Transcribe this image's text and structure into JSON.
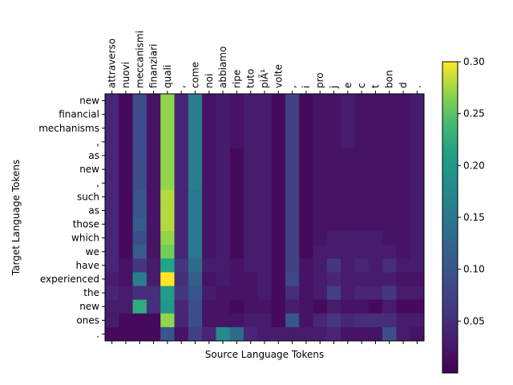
{
  "chart_data": {
    "type": "heatmap",
    "title": "",
    "xlabel": "Source Language Tokens",
    "ylabel": "Target Language Tokens",
    "x_tick_position": "top",
    "x_labels": [
      "attraverso",
      "nuovi",
      "meccanismi",
      "finanziari",
      "quali",
      ",",
      "come",
      "noi",
      "abbiamo",
      "ripe",
      "tuto",
      "piÃ¹",
      "volte",
      ",",
      "i",
      "pro",
      "j",
      "e",
      "c",
      "t",
      "bon",
      "d",
      "."
    ],
    "y_labels": [
      "new",
      "financial",
      "mechanisms",
      ",",
      "as",
      "new",
      ",",
      "such",
      "as",
      "those",
      "which",
      "we",
      "have",
      "experienced",
      "the",
      "new",
      "ones",
      "."
    ],
    "colormap": "viridis",
    "colorbar": {
      "min": 0.0,
      "max": 0.3,
      "ticks": [
        "0.05",
        "0.10",
        "0.15",
        "0.20",
        "0.25",
        "0.30"
      ]
    },
    "values": [
      [
        0.04,
        0.01,
        0.09,
        0.02,
        0.27,
        0.04,
        0.16,
        0.02,
        0.03,
        0.02,
        0.03,
        0.03,
        0.01,
        0.07,
        0.01,
        0.02,
        0.02,
        0.03,
        0.02,
        0.02,
        0.02,
        0.02,
        0.03
      ],
      [
        0.04,
        0.01,
        0.09,
        0.02,
        0.27,
        0.04,
        0.16,
        0.02,
        0.03,
        0.02,
        0.03,
        0.03,
        0.01,
        0.07,
        0.01,
        0.02,
        0.02,
        0.03,
        0.02,
        0.02,
        0.02,
        0.02,
        0.03
      ],
      [
        0.04,
        0.01,
        0.09,
        0.02,
        0.27,
        0.04,
        0.16,
        0.02,
        0.03,
        0.02,
        0.03,
        0.03,
        0.01,
        0.07,
        0.01,
        0.02,
        0.02,
        0.03,
        0.02,
        0.02,
        0.02,
        0.02,
        0.03
      ],
      [
        0.04,
        0.01,
        0.09,
        0.02,
        0.27,
        0.04,
        0.16,
        0.02,
        0.03,
        0.02,
        0.03,
        0.03,
        0.01,
        0.07,
        0.01,
        0.02,
        0.02,
        0.03,
        0.02,
        0.02,
        0.02,
        0.02,
        0.03
      ],
      [
        0.04,
        0.01,
        0.09,
        0.02,
        0.27,
        0.04,
        0.16,
        0.02,
        0.03,
        0.01,
        0.03,
        0.03,
        0.01,
        0.07,
        0.01,
        0.02,
        0.02,
        0.02,
        0.02,
        0.02,
        0.02,
        0.02,
        0.03
      ],
      [
        0.04,
        0.01,
        0.09,
        0.02,
        0.27,
        0.04,
        0.16,
        0.02,
        0.03,
        0.01,
        0.03,
        0.03,
        0.01,
        0.07,
        0.01,
        0.02,
        0.02,
        0.02,
        0.02,
        0.02,
        0.02,
        0.02,
        0.03
      ],
      [
        0.04,
        0.01,
        0.09,
        0.02,
        0.27,
        0.04,
        0.16,
        0.02,
        0.03,
        0.01,
        0.03,
        0.03,
        0.01,
        0.07,
        0.01,
        0.02,
        0.02,
        0.02,
        0.02,
        0.02,
        0.02,
        0.02,
        0.03
      ],
      [
        0.04,
        0.01,
        0.1,
        0.02,
        0.28,
        0.04,
        0.15,
        0.02,
        0.03,
        0.01,
        0.03,
        0.03,
        0.01,
        0.07,
        0.01,
        0.02,
        0.02,
        0.02,
        0.02,
        0.02,
        0.02,
        0.02,
        0.03
      ],
      [
        0.04,
        0.01,
        0.1,
        0.02,
        0.28,
        0.04,
        0.15,
        0.02,
        0.03,
        0.01,
        0.03,
        0.03,
        0.01,
        0.07,
        0.01,
        0.02,
        0.02,
        0.02,
        0.02,
        0.02,
        0.02,
        0.02,
        0.03
      ],
      [
        0.04,
        0.01,
        0.11,
        0.02,
        0.28,
        0.04,
        0.15,
        0.02,
        0.03,
        0.01,
        0.03,
        0.03,
        0.01,
        0.07,
        0.01,
        0.02,
        0.02,
        0.02,
        0.02,
        0.02,
        0.02,
        0.02,
        0.03
      ],
      [
        0.04,
        0.01,
        0.09,
        0.02,
        0.27,
        0.04,
        0.15,
        0.02,
        0.03,
        0.01,
        0.03,
        0.03,
        0.01,
        0.07,
        0.01,
        0.02,
        0.03,
        0.03,
        0.03,
        0.03,
        0.02,
        0.02,
        0.03
      ],
      [
        0.04,
        0.01,
        0.11,
        0.02,
        0.26,
        0.04,
        0.15,
        0.02,
        0.03,
        0.01,
        0.03,
        0.03,
        0.01,
        0.07,
        0.01,
        0.03,
        0.03,
        0.03,
        0.03,
        0.03,
        0.03,
        0.02,
        0.03
      ],
      [
        0.04,
        0.02,
        0.06,
        0.03,
        0.22,
        0.06,
        0.13,
        0.03,
        0.03,
        0.02,
        0.03,
        0.03,
        0.01,
        0.07,
        0.02,
        0.03,
        0.06,
        0.03,
        0.04,
        0.03,
        0.05,
        0.03,
        0.03
      ],
      [
        0.03,
        0.02,
        0.16,
        0.03,
        0.3,
        0.05,
        0.11,
        0.02,
        0.03,
        0.02,
        0.02,
        0.03,
        0.01,
        0.08,
        0.02,
        0.03,
        0.04,
        0.03,
        0.03,
        0.03,
        0.03,
        0.02,
        0.02
      ],
      [
        0.04,
        0.03,
        0.05,
        0.05,
        0.21,
        0.06,
        0.1,
        0.03,
        0.02,
        0.02,
        0.02,
        0.03,
        0.01,
        0.05,
        0.02,
        0.03,
        0.07,
        0.03,
        0.04,
        0.04,
        0.06,
        0.03,
        0.03
      ],
      [
        0.03,
        0.03,
        0.23,
        0.05,
        0.2,
        0.04,
        0.09,
        0.02,
        0.02,
        0.01,
        0.02,
        0.02,
        0.01,
        0.03,
        0.02,
        0.01,
        0.03,
        0.02,
        0.02,
        0.01,
        0.03,
        0.01,
        0.01
      ],
      [
        0.03,
        0.01,
        0.01,
        0.01,
        0.27,
        0.04,
        0.09,
        0.02,
        0.02,
        0.02,
        0.03,
        0.03,
        0.01,
        0.1,
        0.02,
        0.04,
        0.06,
        0.04,
        0.05,
        0.05,
        0.05,
        0.03,
        0.03
      ],
      [
        0.01,
        0.01,
        0.01,
        0.01,
        0.1,
        0.02,
        0.07,
        0.04,
        0.18,
        0.13,
        0.04,
        0.03,
        0.03,
        0.03,
        0.03,
        0.03,
        0.04,
        0.02,
        0.02,
        0.02,
        0.09,
        0.03,
        0.02
      ]
    ]
  }
}
